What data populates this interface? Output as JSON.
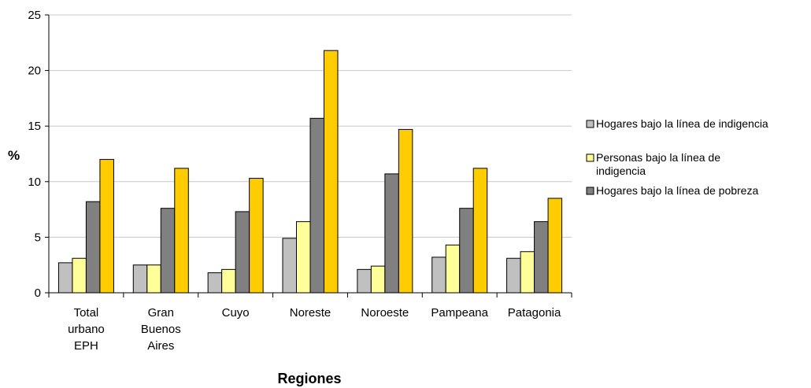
{
  "chart_data": {
    "type": "bar",
    "title": "",
    "xlabel": "Regiones",
    "ylabel": "%",
    "ylim": [
      0,
      25
    ],
    "yticks": [
      0,
      5,
      10,
      15,
      20,
      25
    ],
    "grid": true,
    "legend_position": "right",
    "categories": [
      [
        "Total",
        "urbano",
        "EPH"
      ],
      [
        "Gran",
        "Buenos",
        "Aires"
      ],
      [
        "Cuyo"
      ],
      [
        "Noreste"
      ],
      [
        "Noroeste"
      ],
      [
        "Pampeana"
      ],
      [
        "Patagonia"
      ]
    ],
    "series": [
      {
        "name": "Hogares bajo la línea de indigencia",
        "color": "#c0c0c0",
        "values": [
          2.7,
          2.5,
          1.8,
          4.9,
          2.1,
          3.2,
          3.1
        ]
      },
      {
        "name": "Personas bajo la línea de indigencia",
        "name_lines": [
          "Personas bajo la línea  de",
          "indigencia"
        ],
        "color": "#ffff99",
        "values": [
          3.1,
          2.5,
          2.1,
          6.4,
          2.4,
          4.3,
          3.7
        ]
      },
      {
        "name": "Hogares bajo la línea de pobreza",
        "color": "#808080",
        "values": [
          8.2,
          7.6,
          7.3,
          15.7,
          10.7,
          7.6,
          6.4
        ]
      },
      {
        "name": "",
        "color": "#ffcc00",
        "values": [
          12.0,
          11.2,
          10.3,
          21.8,
          14.7,
          11.2,
          8.5
        ]
      }
    ]
  }
}
